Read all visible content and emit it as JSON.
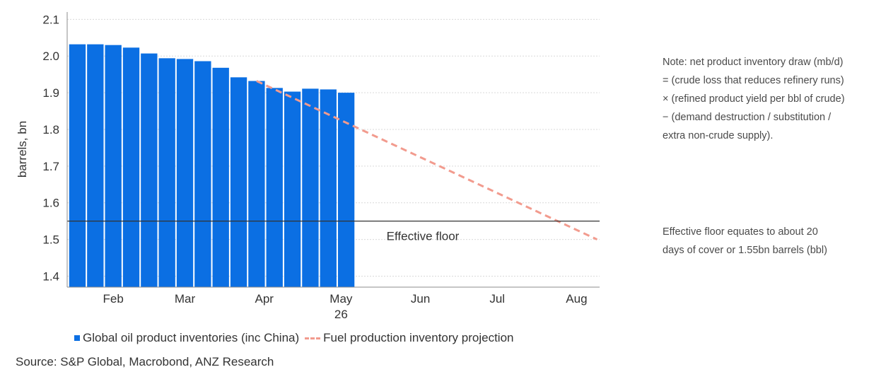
{
  "chart_data": {
    "type": "bar",
    "ylabel": "barrels, bn",
    "ylim": [
      1.37,
      2.12
    ],
    "yticks": [
      1.4,
      1.5,
      1.6,
      1.7,
      1.8,
      1.9,
      2.0,
      2.1
    ],
    "ytick_labels": [
      "1.4",
      "1.5",
      "1.6",
      "1.7",
      "1.8",
      "1.9",
      "2.0",
      "2.1"
    ],
    "xlim": [
      "2026-01-27",
      "2026-08-23"
    ],
    "x_month_labels": [
      {
        "label": "Feb",
        "date": "2026-02-14"
      },
      {
        "label": "Mar",
        "date": "2026-03-14"
      },
      {
        "label": "Apr",
        "date": "2026-04-14"
      },
      {
        "label": "May",
        "date": "2026-05-14"
      },
      {
        "label": "Jun",
        "date": "2026-06-14"
      },
      {
        "label": "Jul",
        "date": "2026-07-14"
      },
      {
        "label": "Aug",
        "date": "2026-08-14"
      }
    ],
    "x_year_label": {
      "label": "26",
      "date": "2026-05-14"
    },
    "grid": "horizontal",
    "legend_position": "bottom",
    "series": [
      {
        "name": "Global oil product inventories (inc China)",
        "type": "bar",
        "color": "#0b6fe3",
        "x": [
          "2026-01-31",
          "2026-02-07",
          "2026-02-14",
          "2026-02-21",
          "2026-02-28",
          "2026-03-07",
          "2026-03-14",
          "2026-03-21",
          "2026-03-28",
          "2026-04-04",
          "2026-04-11",
          "2026-04-18",
          "2026-04-25",
          "2026-05-02",
          "2026-05-09",
          "2026-05-16"
        ],
        "values": [
          2.032,
          2.032,
          2.03,
          2.023,
          2.007,
          1.994,
          1.992,
          1.986,
          1.968,
          1.942,
          1.932,
          1.913,
          1.903,
          1.911,
          1.909,
          1.9
        ]
      },
      {
        "name": "Fuel production inventory projection",
        "type": "line",
        "style": "dashed",
        "color": "#f29b8e",
        "x": [
          "2026-04-11",
          "2026-08-22"
        ],
        "values": [
          1.932,
          1.5
        ]
      }
    ],
    "hlines": [
      {
        "value": 1.55,
        "label": "Effective floor",
        "color": "#333333"
      }
    ]
  },
  "note": {
    "lines": [
      "Note: net product inventory draw (mb/d)",
      "= (crude loss that reduces refinery runs)",
      "× (refined product yield per bbl of crude)",
      "− (demand destruction / substitution /",
      "extra non-crude supply)."
    ]
  },
  "floor_note": {
    "lines": [
      "Effective floor equates to about 20",
      "days of cover or 1.55bn barrels (bbl)"
    ]
  },
  "legend": {
    "bar_label": "Global oil product inventories (inc China)",
    "line_label": "Fuel production inventory projection"
  },
  "source": "Source:  S&P Global, Macrobond, ANZ Research"
}
